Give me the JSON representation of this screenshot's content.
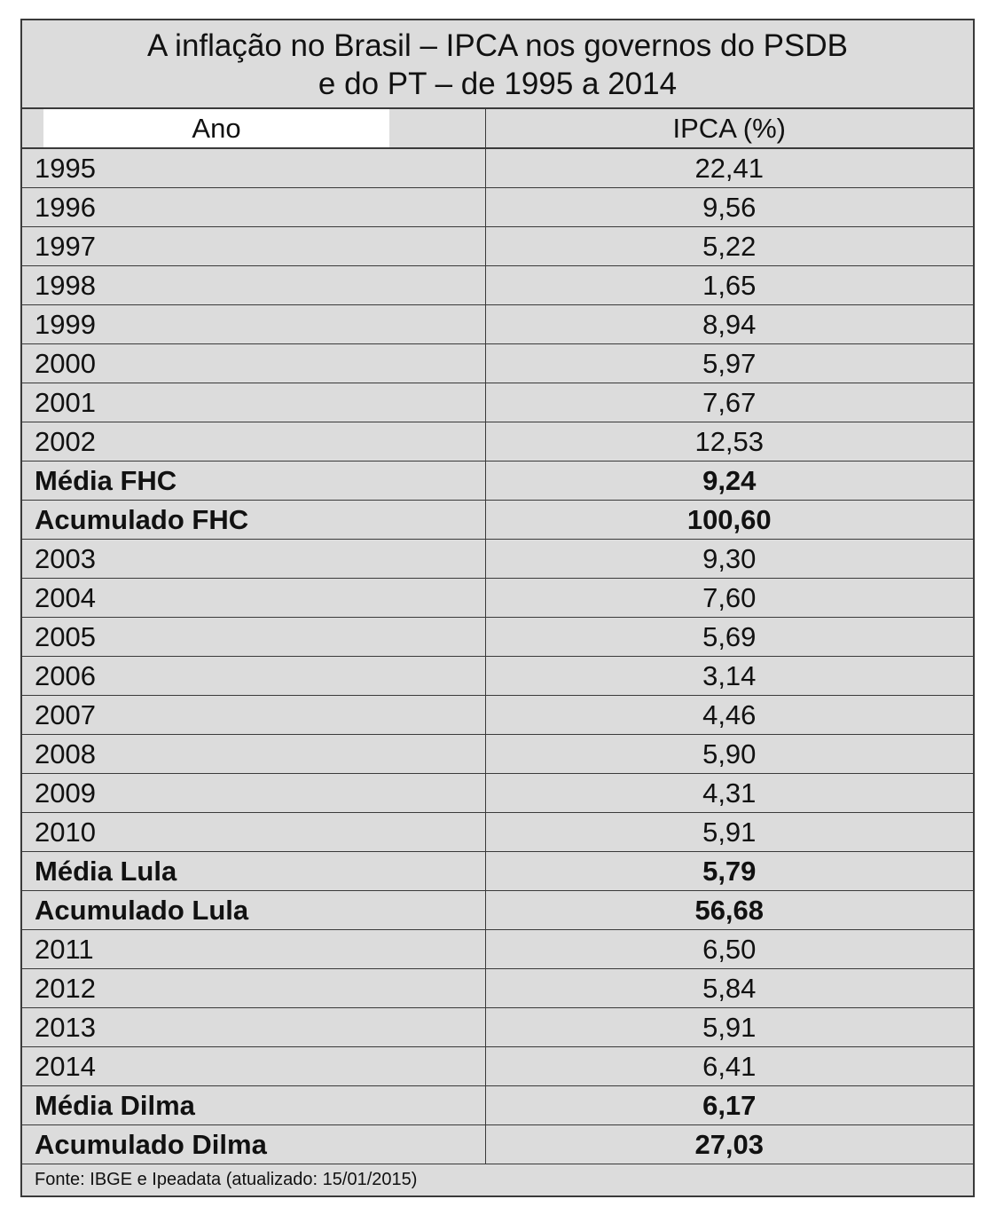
{
  "title": {
    "line1": "A inflação no Brasil – IPCA nos governos do PSDB",
    "line2": "e do PT – de 1995 a 2014"
  },
  "table": {
    "headers": [
      "Ano",
      "IPCA (%)"
    ],
    "rows": [
      {
        "label": "1995",
        "value": "22,41",
        "bold": false
      },
      {
        "label": "1996",
        "value": "9,56",
        "bold": false
      },
      {
        "label": "1997",
        "value": "5,22",
        "bold": false
      },
      {
        "label": "1998",
        "value": "1,65",
        "bold": false
      },
      {
        "label": "1999",
        "value": "8,94",
        "bold": false
      },
      {
        "label": "2000",
        "value": "5,97",
        "bold": false
      },
      {
        "label": "2001",
        "value": "7,67",
        "bold": false
      },
      {
        "label": "2002",
        "value": "12,53",
        "bold": false
      },
      {
        "label": "Média FHC",
        "value": "9,24",
        "bold": true
      },
      {
        "label": "Acumulado FHC",
        "value": "100,60",
        "bold": true
      },
      {
        "label": "2003",
        "value": "9,30",
        "bold": false
      },
      {
        "label": "2004",
        "value": "7,60",
        "bold": false
      },
      {
        "label": "2005",
        "value": "5,69",
        "bold": false
      },
      {
        "label": "2006",
        "value": "3,14",
        "bold": false
      },
      {
        "label": "2007",
        "value": "4,46",
        "bold": false
      },
      {
        "label": "2008",
        "value": "5,90",
        "bold": false
      },
      {
        "label": "2009",
        "value": "4,31",
        "bold": false
      },
      {
        "label": "2010",
        "value": "5,91",
        "bold": false
      },
      {
        "label": "Média Lula",
        "value": "5,79",
        "bold": true
      },
      {
        "label": "Acumulado Lula",
        "value": "56,68",
        "bold": true
      },
      {
        "label": "2011",
        "value": "6,50",
        "bold": false
      },
      {
        "label": "2012",
        "value": "5,84",
        "bold": false
      },
      {
        "label": "2013",
        "value": "5,91",
        "bold": false
      },
      {
        "label": "2014",
        "value": "6,41",
        "bold": false
      },
      {
        "label": "Média Dilma",
        "value": "6,17",
        "bold": true
      },
      {
        "label": "Acumulado Dilma",
        "value": "27,03",
        "bold": true
      }
    ]
  },
  "source": "Fonte: IBGE e Ipeadata (atualizado: 15/01/2015)",
  "colors": {
    "background": "#dcdcdc",
    "border": "#3a3a3a",
    "header_box": "#ffffff"
  }
}
